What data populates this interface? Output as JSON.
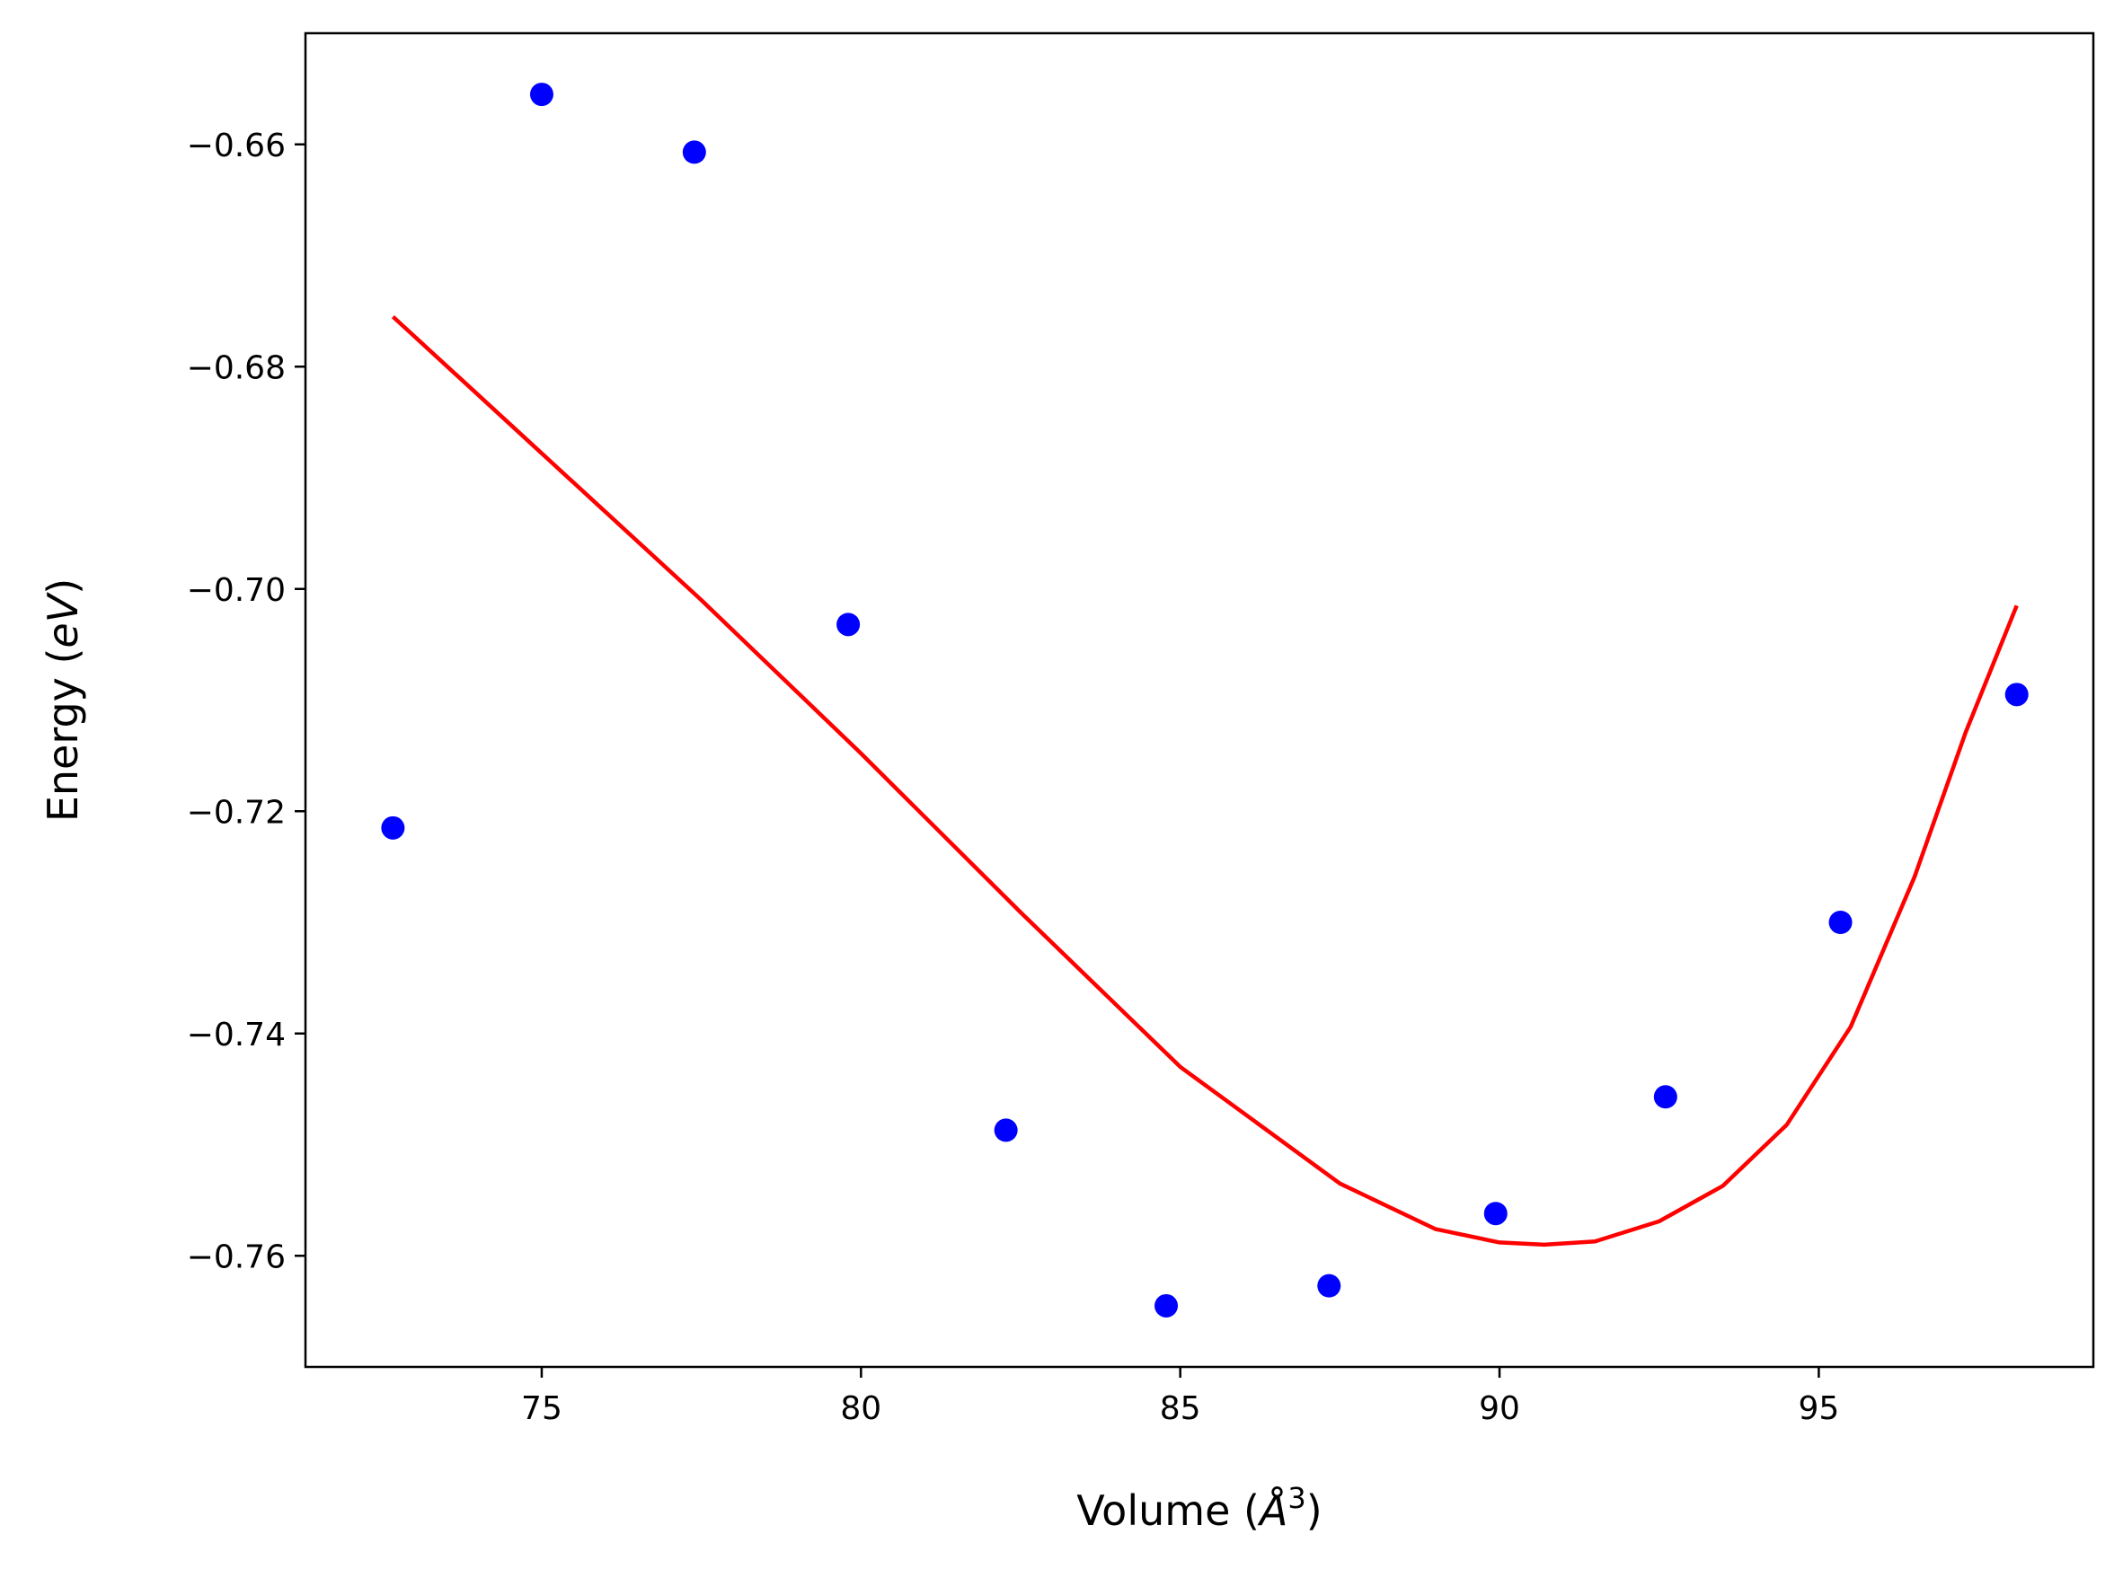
{
  "chart_data": {
    "type": "scatter",
    "title": "",
    "xlabel": {
      "text": "Volume (",
      "italic": "Å",
      "sup": "3",
      "close": ")"
    },
    "ylabel": {
      "text": "Energy (",
      "italic": "eV",
      "close": ")"
    },
    "xlim": [
      71.3,
      99.3
    ],
    "ylim": [
      -0.77,
      -0.65
    ],
    "x_ticks": [
      75,
      80,
      85,
      90,
      95
    ],
    "x_tick_labels": [
      "75",
      "80",
      "85",
      "90",
      "95"
    ],
    "y_ticks": [
      -0.66,
      -0.68,
      -0.7,
      -0.72,
      -0.74,
      -0.76
    ],
    "y_tick_labels": [
      "−0.66",
      "−0.68",
      "−0.70",
      "−0.72",
      "−0.74",
      "−0.76"
    ],
    "grid": false,
    "series": [
      {
        "kind": "points",
        "color": "#0000ff",
        "x": [
          72.67,
          75.0,
          77.39,
          79.8,
          82.27,
          84.78,
          87.33,
          89.94,
          92.6,
          95.34,
          98.1
        ],
        "y": [
          -0.7215,
          -0.6555,
          -0.6607,
          -0.7032,
          -0.7487,
          -0.7645,
          -0.7627,
          -0.7562,
          -0.7457,
          -0.73,
          -0.7095
        ]
      },
      {
        "kind": "curve",
        "color": "#ff0000",
        "x": [
          72.67,
          75.0,
          77.5,
          80.0,
          82.5,
          85.0,
          87.5,
          89.0,
          90.0,
          90.7,
          91.5,
          92.5,
          93.5,
          94.5,
          95.5,
          96.5,
          97.3,
          98.1
        ],
        "y": [
          -0.6755,
          -0.6878,
          -0.701,
          -0.7148,
          -0.7291,
          -0.743,
          -0.7535,
          -0.7576,
          -0.7588,
          -0.759,
          -0.7587,
          -0.7569,
          -0.7537,
          -0.7482,
          -0.7394,
          -0.7259,
          -0.7129,
          -0.7015
        ]
      }
    ]
  }
}
